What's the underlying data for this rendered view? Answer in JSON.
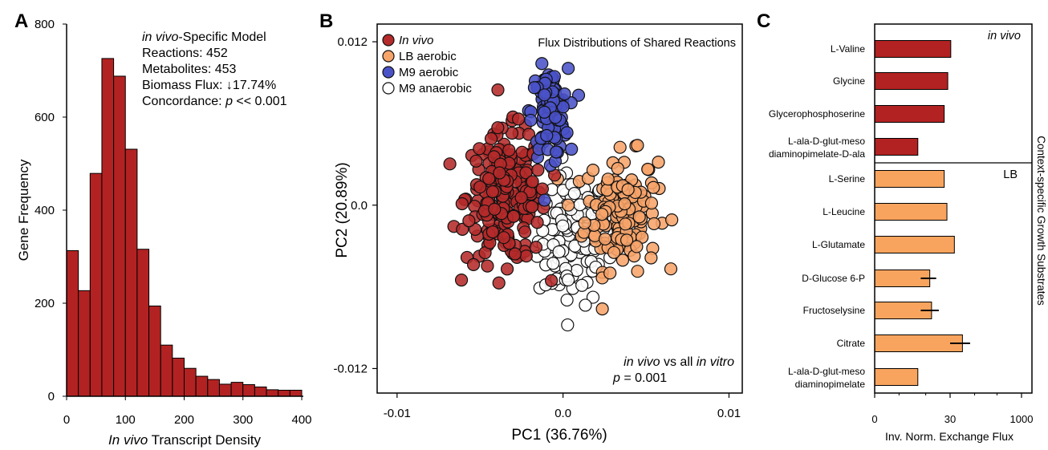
{
  "colors": {
    "hist_bar": "#b22222",
    "in_vivo": "#b52a2a",
    "lb_aerobic": "#f7a46a",
    "m9_aerobic": "#4a52c8",
    "m9_anaerobic": "#ffffff",
    "bar_c_invivo": "#b22222",
    "bar_c_lb": "#f8a45e"
  },
  "panels": {
    "a": {
      "letter": "A"
    },
    "b": {
      "letter": "B"
    },
    "c": {
      "letter": "C"
    }
  },
  "chart_data": [
    {
      "type": "bar",
      "panel": "A",
      "xlabel_italic": "In vivo",
      "xlabel_rest": " Transcript Density",
      "ylabel": "Gene Frequency",
      "xlim": [
        0,
        400
      ],
      "ylim": [
        0,
        800
      ],
      "x_ticks": [
        "0",
        "100",
        "200",
        "300",
        "400"
      ],
      "y_ticks": [
        "0",
        "200",
        "400",
        "600",
        "800"
      ],
      "bin_width": 20,
      "bins_start": [
        0,
        20,
        40,
        60,
        80,
        100,
        120,
        140,
        160,
        180,
        200,
        220,
        240,
        260,
        280,
        300,
        320,
        340,
        360,
        380
      ],
      "values": [
        313,
        227,
        479,
        726,
        688,
        531,
        316,
        194,
        110,
        82,
        60,
        43,
        36,
        26,
        30,
        25,
        20,
        14,
        13,
        13
      ],
      "annotation": {
        "line1_italic": "in vivo",
        "line1_rest": "-Specific Model",
        "line2": "Reactions: 452",
        "line3": "Metabolites: 453",
        "line4": "Biomass Flux: ↓17.74%",
        "line5_pre": "Concordance: ",
        "line5_italic": "p",
        "line5_post": " << 0.001"
      }
    },
    {
      "type": "scatter",
      "panel": "B",
      "title": "Flux Distributions of Shared Reactions",
      "xlabel": "PC1 (36.76%)",
      "ylabel": "PC2 (20.89%)",
      "xlim": [
        -0.0112,
        0.0108
      ],
      "ylim": [
        -0.0138,
        0.0133
      ],
      "x_ticks": [
        {
          "v": -0.01,
          "label": "-0.01"
        },
        {
          "v": 0,
          "label": "0.0"
        },
        {
          "v": 0.01,
          "label": "0.01"
        }
      ],
      "y_ticks": [
        {
          "v": 0.012,
          "label": "0.012"
        },
        {
          "v": 0,
          "label": "0.0"
        },
        {
          "v": -0.012,
          "label": "-0.012"
        }
      ],
      "legend": [
        "In vivo",
        "LB aerobic",
        "M9 aerobic",
        "M9 anaerobic"
      ],
      "legend_italic": [
        true,
        false,
        false,
        false
      ],
      "stat_line1_a": "in vivo",
      "stat_line1_b": " vs all ",
      "stat_line1_c": "in vitro",
      "stat_line2_a": "p",
      "stat_line2_b": " = 0.001",
      "series": [
        {
          "name": "In vivo",
          "center": [
            -0.0034,
            0.0006
          ],
          "spread": [
            0.0024,
            0.0048
          ],
          "n": 230
        },
        {
          "name": "LB aerobic",
          "center": [
            0.0035,
            -0.0005
          ],
          "spread": [
            0.0022,
            0.0042
          ],
          "n": 150
        },
        {
          "name": "M9 aerobic",
          "center": [
            -0.0008,
            0.0068
          ],
          "spread": [
            0.0011,
            0.0032
          ],
          "n": 105
        },
        {
          "name": "M9 anaerobic",
          "center": [
            0.0006,
            -0.0025
          ],
          "spread": [
            0.0021,
            0.0048
          ],
          "n": 120
        }
      ]
    },
    {
      "type": "bar",
      "panel": "C",
      "orientation": "horizontal",
      "xlabel": "Inv. Norm. Exchange Flux",
      "right_label": "Context-specific Growth Substrates",
      "x_scale": "log",
      "x_ticks": [
        "0",
        "30",
        "1000"
      ],
      "sections": [
        {
          "name": "in vivo",
          "items": [
            {
              "label": "L-Valine",
              "value": 31
            },
            {
              "label": "Glycine",
              "value": 27
            },
            {
              "label": "Glycerophosphoserine",
              "value": 23
            },
            {
              "label": "L-ala-D-glut-meso diaminopimelate-D-ala",
              "line1": "L-ala-D-glut-meso",
              "line2": "diaminopimelate-D-ala",
              "value": 7
            }
          ]
        },
        {
          "name": "LB",
          "items": [
            {
              "label": "L-Serine",
              "value": 23
            },
            {
              "label": "L-Leucine",
              "value": 26
            },
            {
              "label": "L-Glutamate",
              "value": 37
            },
            {
              "label": "D-Glucose 6-P",
              "value": 12,
              "error": 4
            },
            {
              "label": "Fructoselysine",
              "value": 13,
              "error": 5
            },
            {
              "label": "Citrate",
              "value": 55,
              "error": 25
            },
            {
              "label": "L-ala-D-glut-meso diaminopimelate",
              "line1": "L-ala-D-glut-meso",
              "line2": "diaminopimelate",
              "value": 7
            }
          ]
        }
      ]
    }
  ]
}
